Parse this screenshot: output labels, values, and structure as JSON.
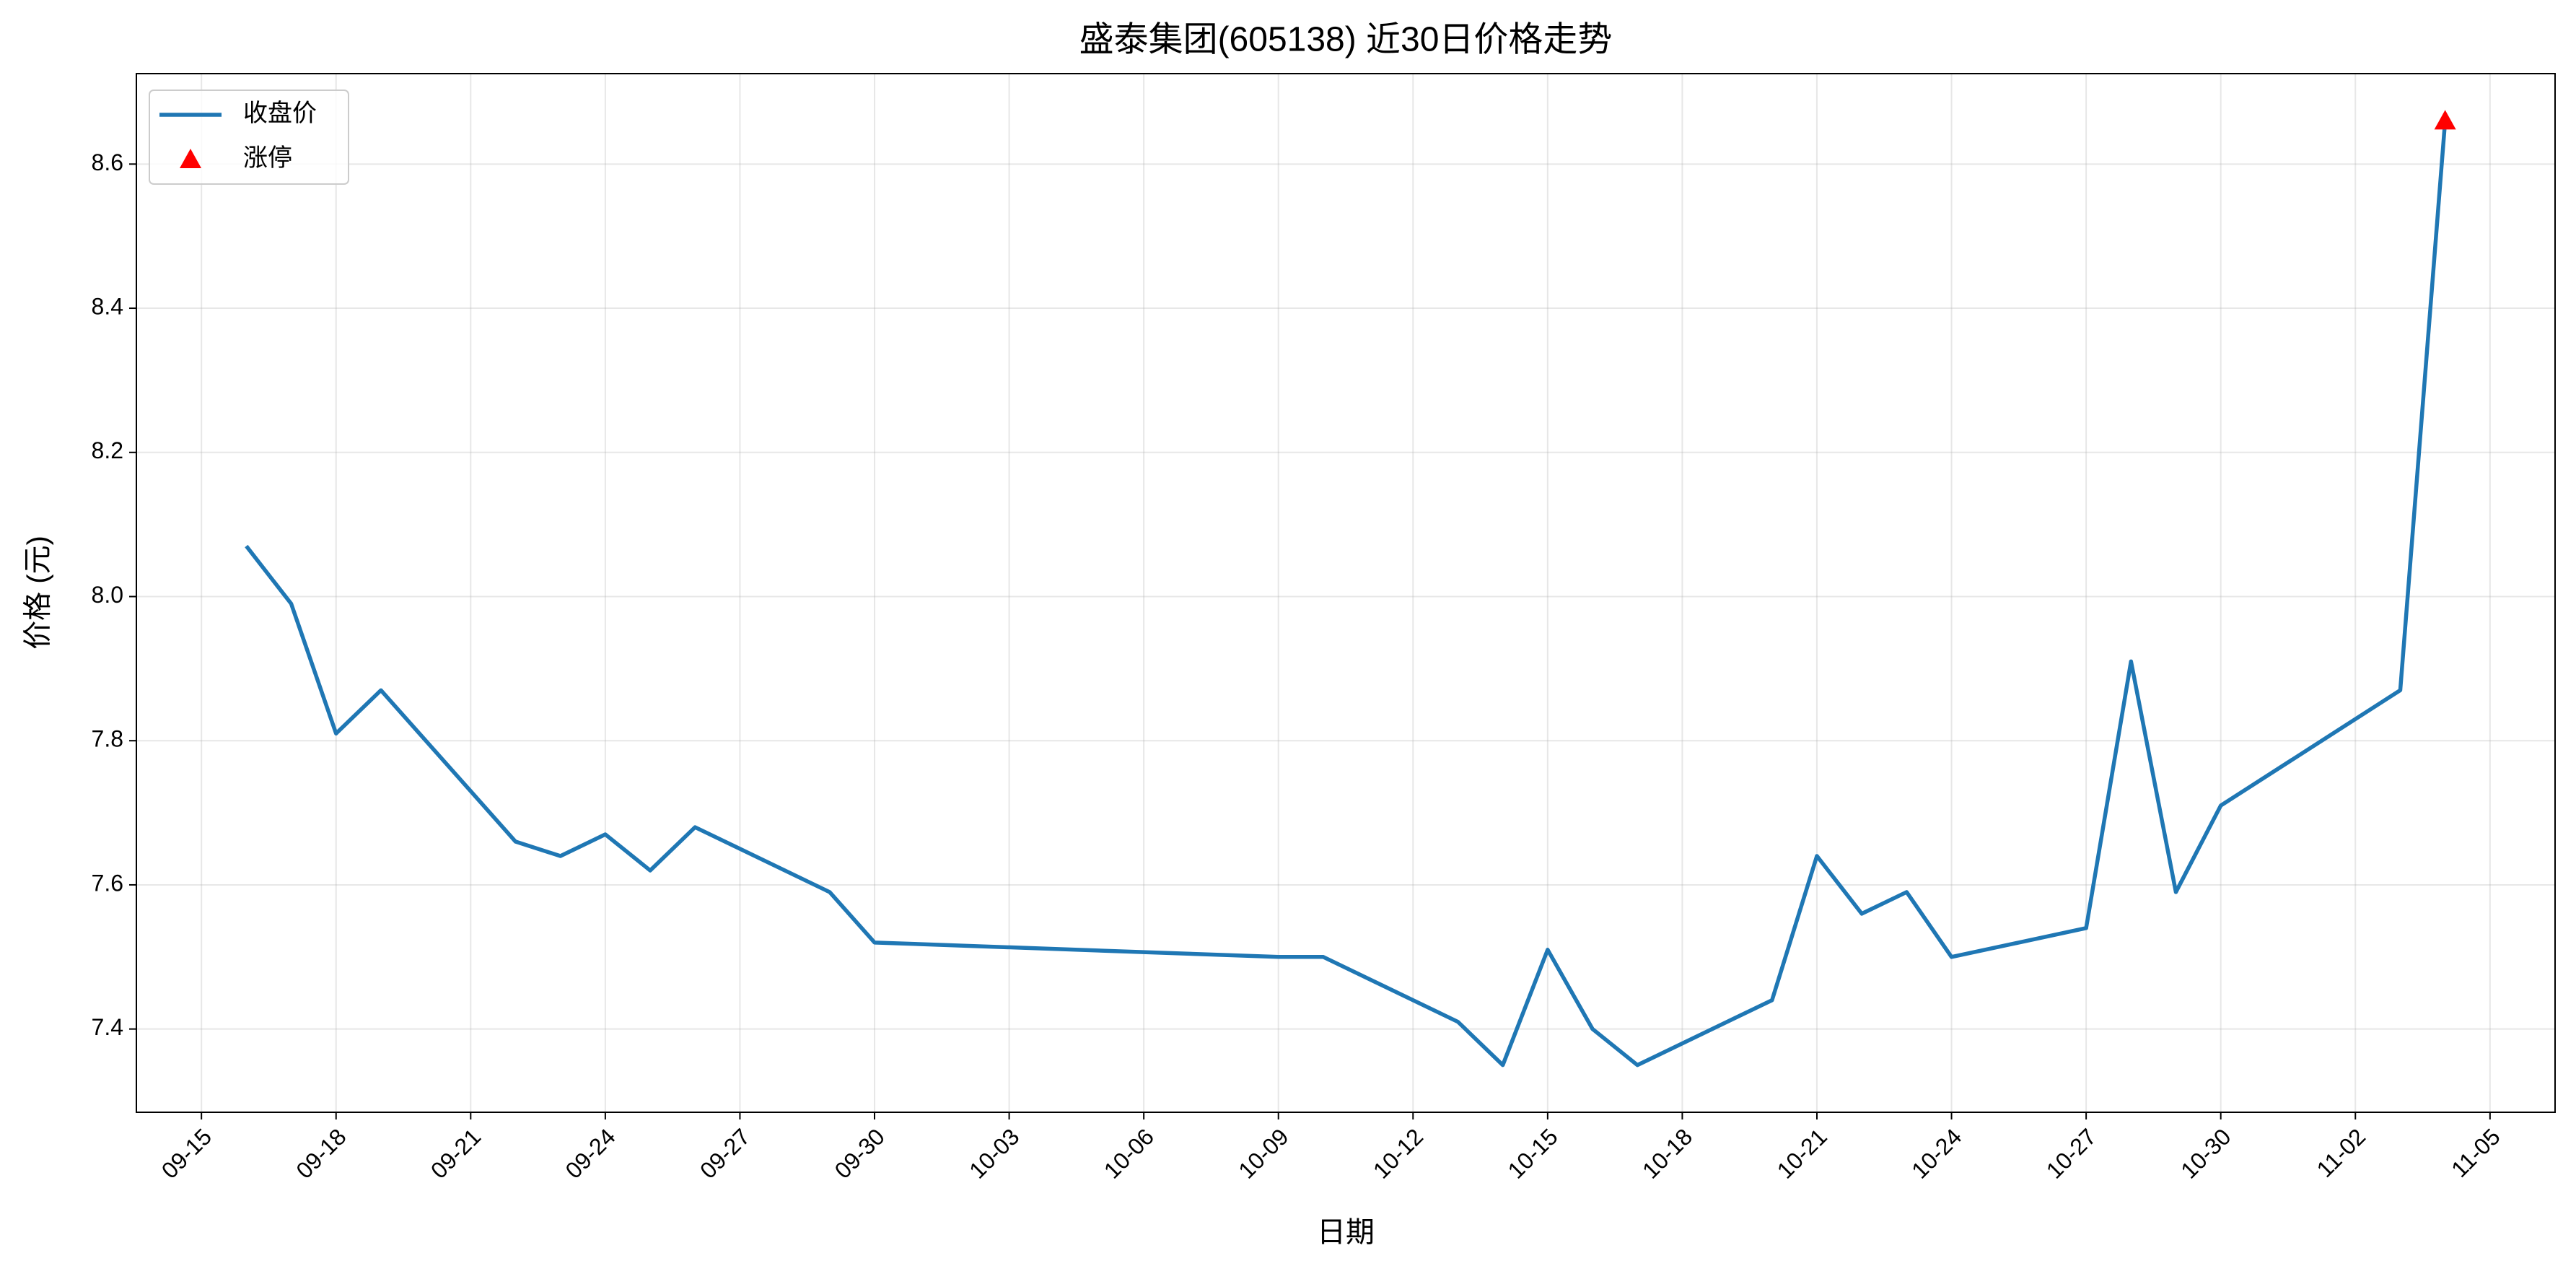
{
  "chart_data": {
    "type": "line",
    "title": "盛泰集团(605138) 近30日价格走势",
    "x_label": "日期",
    "y_label": "价格 (元)",
    "x": [
      "09-16",
      "09-17",
      "09-18",
      "09-19",
      "09-22",
      "09-23",
      "09-24",
      "09-25",
      "09-26",
      "09-29",
      "09-30",
      "10-09",
      "10-10",
      "10-13",
      "10-14",
      "10-15",
      "10-16",
      "10-17",
      "10-20",
      "10-21",
      "10-22",
      "10-23",
      "10-24",
      "10-27",
      "10-28",
      "10-29",
      "10-30",
      "11-03",
      "11-04"
    ],
    "series": [
      {
        "name": "收盘价",
        "type": "line",
        "color": "#1f77b4",
        "values": [
          8.07,
          7.99,
          7.81,
          7.87,
          7.66,
          7.64,
          7.67,
          7.62,
          7.68,
          7.59,
          7.52,
          7.5,
          7.5,
          7.41,
          7.35,
          7.51,
          7.4,
          7.35,
          7.44,
          7.64,
          7.56,
          7.59,
          7.5,
          7.54,
          7.91,
          7.59,
          7.71,
          7.87,
          8.66
        ]
      },
      {
        "name": "涨停",
        "type": "scatter",
        "marker": "triangle",
        "color": "#ff0000",
        "x": [
          "11-04"
        ],
        "values": [
          8.66
        ]
      }
    ],
    "xticks": [
      "09-15",
      "09-18",
      "09-21",
      "09-24",
      "09-27",
      "09-30",
      "10-03",
      "10-06",
      "10-09",
      "10-12",
      "10-15",
      "10-18",
      "10-21",
      "10-24",
      "10-27",
      "10-30",
      "11-02",
      "11-05"
    ],
    "ylim": [
      7.2845,
      8.7255
    ],
    "yticks": [
      7.4,
      7.6,
      7.8,
      {
        "value": 8,
        "label": "8.0"
      },
      8.2,
      8.4,
      8.6
    ],
    "grid": true,
    "legend": "upper left"
  }
}
